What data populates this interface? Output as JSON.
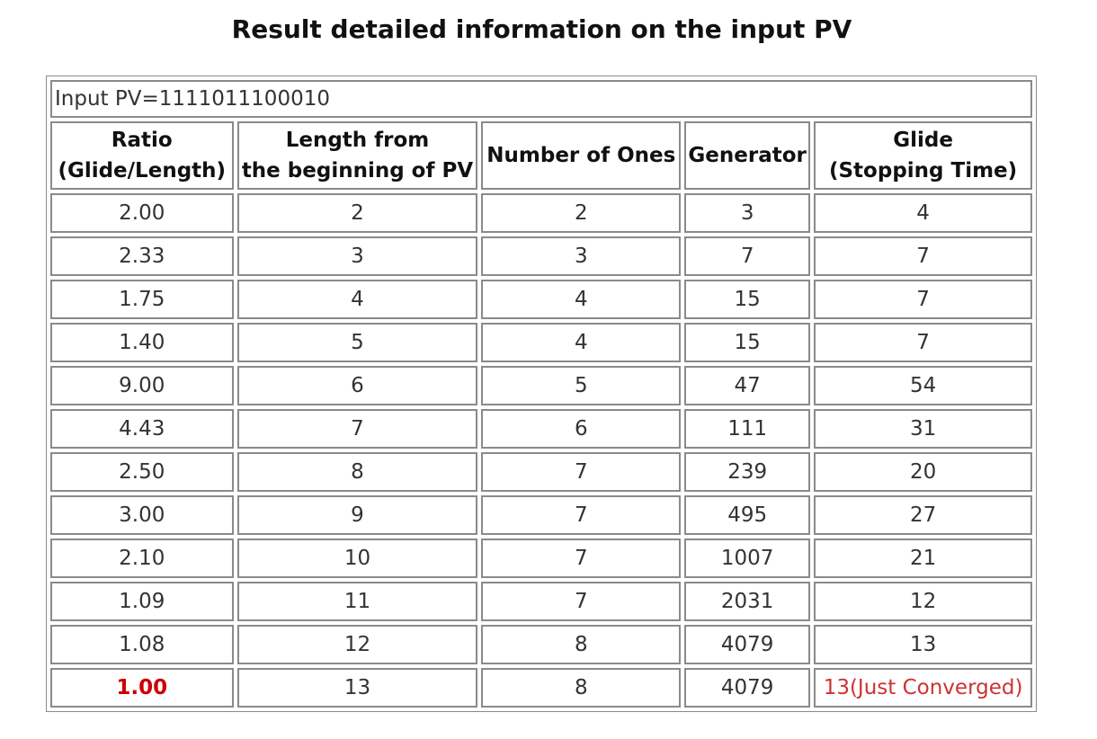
{
  "title": "Result detailed information on the input PV",
  "input_pv_label": "Input PV=1111011100010",
  "headers": [
    "Ratio\n(Glide/Length)",
    "Length from\nthe beginning of PV",
    "Number of Ones",
    "Generator",
    "Glide\n(Stopping Time)"
  ],
  "rows": [
    {
      "ratio": "2.00",
      "length": "2",
      "ones": "2",
      "generator": "3",
      "glide": "4"
    },
    {
      "ratio": "2.33",
      "length": "3",
      "ones": "3",
      "generator": "7",
      "glide": "7"
    },
    {
      "ratio": "1.75",
      "length": "4",
      "ones": "4",
      "generator": "15",
      "glide": "7"
    },
    {
      "ratio": "1.40",
      "length": "5",
      "ones": "4",
      "generator": "15",
      "glide": "7"
    },
    {
      "ratio": "9.00",
      "length": "6",
      "ones": "5",
      "generator": "47",
      "glide": "54"
    },
    {
      "ratio": "4.43",
      "length": "7",
      "ones": "6",
      "generator": "111",
      "glide": "31"
    },
    {
      "ratio": "2.50",
      "length": "8",
      "ones": "7",
      "generator": "239",
      "glide": "20"
    },
    {
      "ratio": "3.00",
      "length": "9",
      "ones": "7",
      "generator": "495",
      "glide": "27"
    },
    {
      "ratio": "2.10",
      "length": "10",
      "ones": "7",
      "generator": "1007",
      "glide": "21"
    },
    {
      "ratio": "1.09",
      "length": "11",
      "ones": "7",
      "generator": "2031",
      "glide": "12"
    },
    {
      "ratio": "1.08",
      "length": "12",
      "ones": "8",
      "generator": "4079",
      "glide": "13"
    },
    {
      "ratio": "1.00",
      "length": "13",
      "ones": "8",
      "generator": "4079",
      "glide": "13(Just Converged)",
      "highlight": true
    }
  ],
  "colors": {
    "highlight_ratio": "#cc0000",
    "highlight_glide": "#cc3333",
    "border": "#8a8a8a"
  }
}
